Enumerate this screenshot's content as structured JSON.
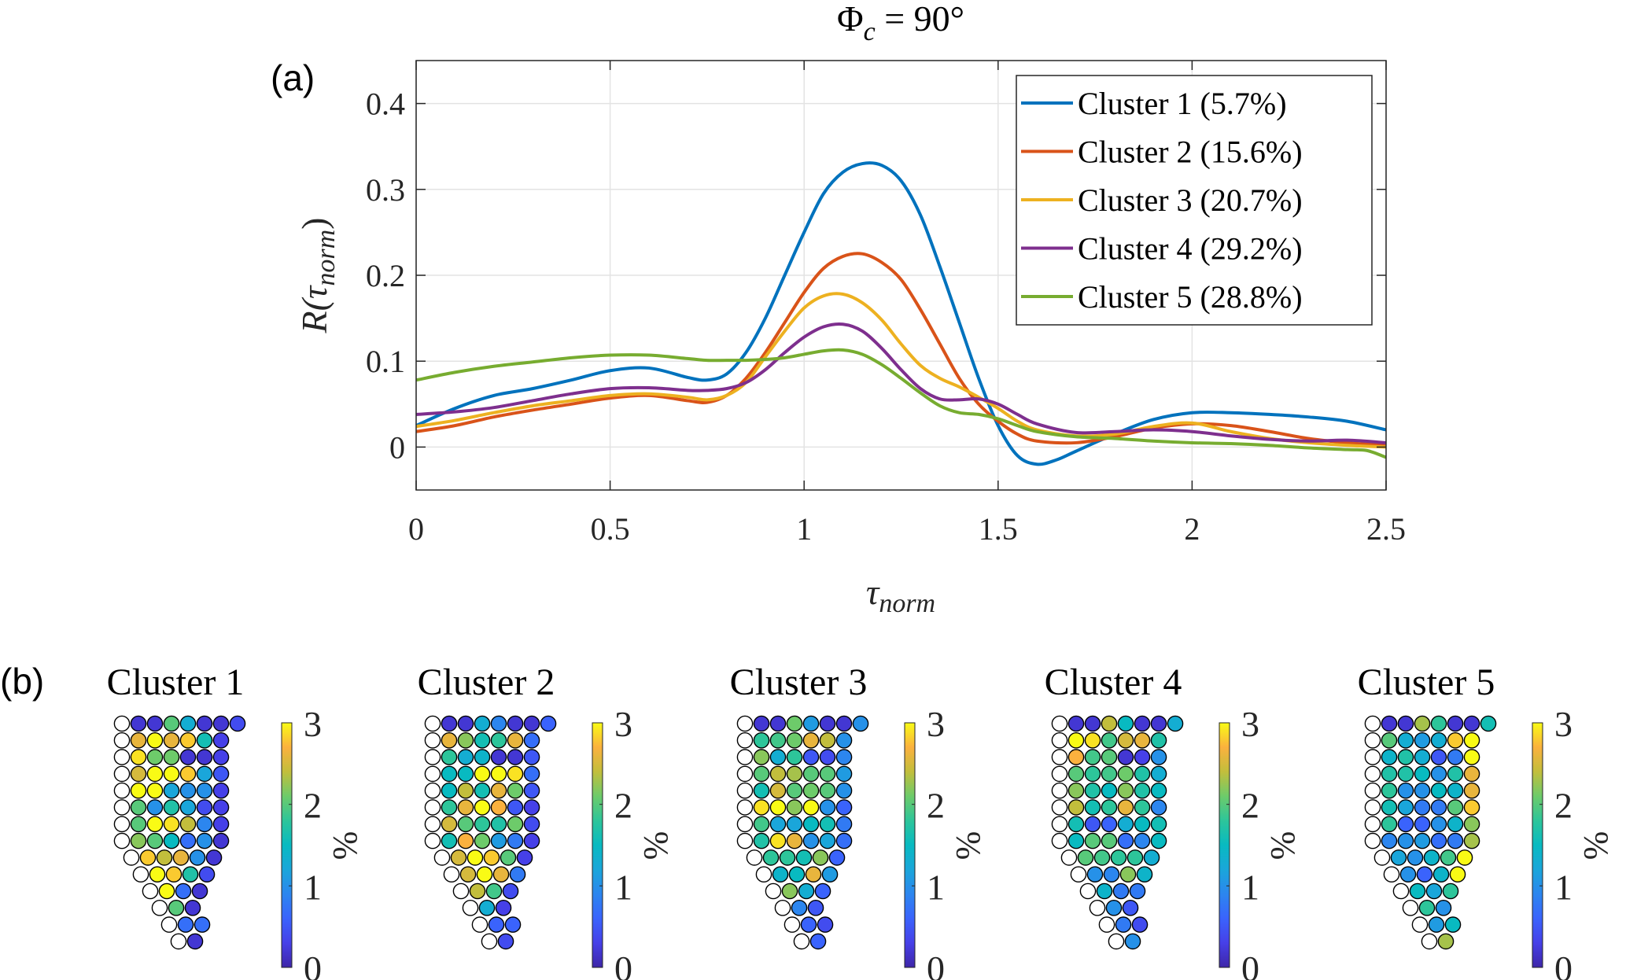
{
  "figure": {
    "title": "Φ",
    "title_sub": "c",
    "title_rest": " = 90°",
    "panel_a_label": "(a)",
    "panel_b_label": "(b)"
  },
  "chart_data": [
    {
      "type": "line",
      "panel": "a",
      "title": "Φc = 90°",
      "xlabel": "τ",
      "xlabel_sub": "norm",
      "ylabel": "R(τ",
      "ylabel_sub": "norm",
      "ylabel_close": ")",
      "xlim": [
        0,
        2.5
      ],
      "ylim": [
        -0.05,
        0.45
      ],
      "xticks": [
        0,
        0.5,
        1,
        1.5,
        2,
        2.5
      ],
      "xtick_labels": [
        "0",
        "0.5",
        "1",
        "1.5",
        "2",
        "2.5"
      ],
      "yticks": [
        0,
        0.1,
        0.2,
        0.3,
        0.4
      ],
      "ytick_labels": [
        "0",
        "0.1",
        "0.2",
        "0.3",
        "0.4"
      ],
      "grid": true,
      "legend_position": "top-right",
      "series": [
        {
          "name": "Cluster 1 (5.7%)",
          "color": "#0072BD",
          "x": [
            0,
            0.1,
            0.2,
            0.3,
            0.4,
            0.5,
            0.6,
            0.7,
            0.75,
            0.8,
            0.85,
            0.9,
            0.95,
            1.0,
            1.05,
            1.1,
            1.15,
            1.2,
            1.25,
            1.3,
            1.35,
            1.4,
            1.45,
            1.5,
            1.55,
            1.6,
            1.65,
            1.7,
            1.8,
            1.9,
            2.0,
            2.1,
            2.2,
            2.3,
            2.4,
            2.5
          ],
          "y": [
            0.025,
            0.045,
            0.06,
            0.068,
            0.078,
            0.089,
            0.092,
            0.081,
            0.078,
            0.085,
            0.11,
            0.15,
            0.2,
            0.25,
            0.295,
            0.32,
            0.33,
            0.328,
            0.31,
            0.27,
            0.21,
            0.145,
            0.08,
            0.025,
            -0.01,
            -0.02,
            -0.015,
            -0.005,
            0.015,
            0.032,
            0.04,
            0.04,
            0.038,
            0.035,
            0.03,
            0.02
          ]
        },
        {
          "name": "Cluster 2 (15.6%)",
          "color": "#D95319",
          "x": [
            0,
            0.1,
            0.2,
            0.3,
            0.4,
            0.5,
            0.6,
            0.7,
            0.75,
            0.8,
            0.85,
            0.9,
            0.95,
            1.0,
            1.05,
            1.1,
            1.15,
            1.2,
            1.25,
            1.3,
            1.35,
            1.4,
            1.45,
            1.5,
            1.55,
            1.6,
            1.7,
            1.8,
            1.9,
            2.0,
            2.1,
            2.2,
            2.3,
            2.4,
            2.5
          ],
          "y": [
            0.018,
            0.025,
            0.035,
            0.043,
            0.05,
            0.057,
            0.06,
            0.054,
            0.052,
            0.06,
            0.08,
            0.11,
            0.145,
            0.18,
            0.208,
            0.222,
            0.225,
            0.215,
            0.195,
            0.16,
            0.12,
            0.08,
            0.05,
            0.03,
            0.015,
            0.007,
            0.005,
            0.012,
            0.022,
            0.027,
            0.025,
            0.018,
            0.01,
            0.005,
            0.002
          ]
        },
        {
          "name": "Cluster 3 (20.7%)",
          "color": "#EDB120",
          "x": [
            0,
            0.1,
            0.2,
            0.3,
            0.4,
            0.5,
            0.6,
            0.7,
            0.75,
            0.8,
            0.85,
            0.9,
            0.95,
            1.0,
            1.05,
            1.1,
            1.15,
            1.2,
            1.25,
            1.3,
            1.35,
            1.4,
            1.45,
            1.5,
            1.55,
            1.6,
            1.7,
            1.8,
            1.9,
            2.0,
            2.1,
            2.2,
            2.3,
            2.4,
            2.5
          ],
          "y": [
            0.024,
            0.031,
            0.04,
            0.048,
            0.054,
            0.06,
            0.062,
            0.058,
            0.055,
            0.06,
            0.075,
            0.105,
            0.135,
            0.162,
            0.176,
            0.178,
            0.168,
            0.148,
            0.12,
            0.095,
            0.08,
            0.07,
            0.058,
            0.045,
            0.03,
            0.02,
            0.013,
            0.015,
            0.024,
            0.028,
            0.018,
            0.01,
            0.005,
            0.002,
            0.0
          ]
        },
        {
          "name": "Cluster 4 (29.2%)",
          "color": "#7E2F8E",
          "x": [
            0,
            0.1,
            0.2,
            0.3,
            0.4,
            0.5,
            0.6,
            0.7,
            0.75,
            0.8,
            0.85,
            0.9,
            0.95,
            1.0,
            1.05,
            1.1,
            1.15,
            1.2,
            1.25,
            1.3,
            1.35,
            1.4,
            1.45,
            1.5,
            1.55,
            1.6,
            1.7,
            1.8,
            1.9,
            2.0,
            2.1,
            2.2,
            2.3,
            2.4,
            2.5
          ],
          "y": [
            0.038,
            0.041,
            0.046,
            0.054,
            0.062,
            0.068,
            0.069,
            0.066,
            0.066,
            0.068,
            0.075,
            0.09,
            0.11,
            0.128,
            0.14,
            0.143,
            0.135,
            0.115,
            0.09,
            0.068,
            0.056,
            0.055,
            0.056,
            0.05,
            0.038,
            0.027,
            0.017,
            0.018,
            0.02,
            0.018,
            0.013,
            0.009,
            0.007,
            0.008,
            0.005
          ]
        },
        {
          "name": "Cluster 5 (28.8%)",
          "color": "#77AC30",
          "x": [
            0,
            0.1,
            0.2,
            0.3,
            0.4,
            0.5,
            0.6,
            0.7,
            0.75,
            0.8,
            0.85,
            0.9,
            0.95,
            1.0,
            1.05,
            1.1,
            1.15,
            1.2,
            1.25,
            1.3,
            1.35,
            1.4,
            1.45,
            1.5,
            1.55,
            1.6,
            1.7,
            1.8,
            1.9,
            2.0,
            2.1,
            2.2,
            2.3,
            2.4,
            2.45,
            2.5
          ],
          "y": [
            0.078,
            0.087,
            0.094,
            0.099,
            0.104,
            0.107,
            0.107,
            0.103,
            0.101,
            0.101,
            0.101,
            0.102,
            0.104,
            0.108,
            0.112,
            0.113,
            0.108,
            0.096,
            0.08,
            0.063,
            0.048,
            0.04,
            0.038,
            0.033,
            0.025,
            0.018,
            0.012,
            0.01,
            0.007,
            0.005,
            0.004,
            0.002,
            -0.001,
            -0.003,
            -0.004,
            -0.012
          ]
        }
      ]
    },
    {
      "type": "heatmap",
      "panel": "b",
      "colorbar_label": "%",
      "colorbar_range": [
        0,
        3
      ],
      "colorbar_ticks": [
        "0",
        "1",
        "2",
        "3"
      ],
      "colormap": "parula",
      "note": "Each row: leading empty (white) sensor, then colored sensors; values in %",
      "row_shape": [
        8,
        7,
        7,
        7,
        7,
        7,
        7,
        7,
        6,
        5,
        4,
        3,
        3,
        2
      ],
      "clusters": [
        {
          "title": "Cluster 1",
          "rows": [
            [
              0.2,
              0.2,
              2.0,
              1.3,
              0.2,
              0.2,
              0.4
            ],
            [
              2.6,
              3.0,
              2.6,
              2.8,
              1.6,
              0.3
            ],
            [
              2.9,
              2.1,
              2.1,
              0.2,
              0.2,
              0.3
            ],
            [
              2.5,
              3.0,
              3.0,
              2.8,
              1.2,
              0.5
            ],
            [
              3.0,
              3.0,
              1.2,
              1.0,
              1.0,
              0.3
            ],
            [
              2.0,
              1.0,
              1.7,
              1.2,
              0.4,
              0.3
            ],
            [
              2.0,
              3.0,
              2.9,
              2.4,
              0.9,
              0.3
            ],
            [
              2.2,
              2.0,
              1.5,
              0.7,
              1.0,
              0.2
            ],
            [
              2.8,
              2.4,
              2.6,
              1.0,
              0.2
            ],
            [
              3.0,
              2.8,
              1.7,
              0.4
            ],
            [
              3.0,
              0.7,
              0.2
            ],
            [
              2.0,
              0.2
            ],
            [
              0.7,
              0.7
            ],
            [
              0.2
            ]
          ]
        },
        {
          "title": "Cluster 2",
          "rows": [
            [
              0.2,
              0.2,
              1.3,
              0.9,
              0.2,
              0.2,
              0.6
            ],
            [
              2.6,
              2.2,
              1.6,
              1.8,
              2.6,
              0.7
            ],
            [
              1.8,
              1.3,
              1.4,
              0.2,
              0.2,
              0.5
            ],
            [
              1.5,
              1.5,
              3.0,
              3.0,
              2.9,
              0.7
            ],
            [
              1.5,
              2.4,
              1.6,
              2.6,
              2.1,
              0.5
            ],
            [
              1.8,
              2.6,
              3.0,
              2.7,
              0.5,
              0.3
            ],
            [
              2.5,
              2.0,
              1.8,
              1.7,
              2.1,
              0.4
            ],
            [
              1.6,
              2.7,
              2.1,
              1.1,
              0.8,
              0.3
            ],
            [
              2.5,
              3.0,
              2.8,
              2.0,
              0.3
            ],
            [
              2.5,
              3.0,
              2.6,
              0.8
            ],
            [
              2.4,
              1.9,
              0.4
            ],
            [
              1.3,
              0.3
            ],
            [
              0.6,
              0.6
            ],
            [
              0.4
            ]
          ]
        },
        {
          "title": "Cluster 3",
          "rows": [
            [
              0.2,
              0.2,
              2.1,
              1.1,
              0.2,
              0.2,
              1.0
            ],
            [
              1.8,
              1.9,
              2.1,
              2.6,
              2.4,
              1.0
            ],
            [
              2.2,
              1.3,
              1.8,
              0.5,
              0.4,
              0.9
            ],
            [
              2.0,
              2.4,
              2.3,
              2.0,
              2.0,
              1.1
            ],
            [
              1.6,
              2.5,
              2.0,
              2.1,
              2.0,
              1.0
            ],
            [
              2.9,
              3.0,
              2.2,
              3.0,
              1.0,
              0.6
            ],
            [
              1.9,
              1.2,
              1.2,
              1.5,
              1.6,
              0.8
            ],
            [
              1.7,
              2.9,
              2.6,
              1.0,
              1.2,
              0.7
            ],
            [
              1.8,
              1.8,
              1.6,
              2.2,
              0.6
            ],
            [
              1.4,
              1.5,
              2.6,
              1.1
            ],
            [
              2.2,
              1.3,
              0.6
            ],
            [
              0.9,
              0.5
            ],
            [
              0.6,
              0.4
            ],
            [
              0.6
            ]
          ]
        },
        {
          "title": "Cluster 4",
          "rows": [
            [
              0.2,
              0.2,
              2.4,
              1.5,
              0.2,
              0.2,
              1.3
            ],
            [
              3.0,
              2.9,
              1.9,
              2.5,
              2.6,
              1.7
            ],
            [
              2.7,
              1.9,
              2.0,
              0.2,
              0.3,
              1.0
            ],
            [
              2.0,
              1.8,
              1.9,
              2.1,
              1.7,
              1.3
            ],
            [
              2.2,
              1.7,
              1.5,
              2.2,
              1.7,
              1.5
            ],
            [
              2.4,
              1.6,
              1.8,
              2.6,
              1.8,
              0.9
            ],
            [
              1.6,
              0.5,
              0.6,
              1.3,
              1.5,
              1.6
            ],
            [
              1.5,
              2.0,
              2.0,
              0.7,
              0.9,
              1.5
            ],
            [
              2.0,
              1.9,
              1.8,
              1.8,
              1.3
            ],
            [
              1.0,
              0.9,
              2.2,
              1.4
            ],
            [
              1.4,
              0.8,
              0.8
            ],
            [
              1.0,
              0.5
            ],
            [
              0.8,
              0.4
            ],
            [
              1.0
            ]
          ]
        },
        {
          "title": "Cluster 5",
          "rows": [
            [
              0.2,
              0.2,
              2.3,
              1.8,
              0.2,
              0.2,
              1.6
            ],
            [
              2.0,
              1.3,
              1.1,
              1.3,
              2.8,
              3.0
            ],
            [
              1.4,
              1.7,
              1.3,
              0.5,
              0.8,
              3.0
            ],
            [
              1.7,
              1.7,
              1.5,
              1.0,
              1.7,
              2.6
            ],
            [
              1.8,
              1.0,
              1.0,
              1.5,
              1.4,
              2.6
            ],
            [
              1.6,
              1.2,
              0.8,
              0.8,
              2.0,
              2.8
            ],
            [
              1.8,
              0.6,
              0.6,
              1.0,
              1.4,
              2.2
            ],
            [
              0.9,
              1.0,
              1.1,
              0.7,
              0.8,
              2.3
            ],
            [
              1.2,
              1.0,
              1.4,
              1.9,
              3.0
            ],
            [
              1.0,
              0.6,
              1.4,
              3.0
            ],
            [
              1.5,
              1.2,
              1.8
            ],
            [
              1.8,
              1.0
            ],
            [
              1.1,
              1.5
            ],
            [
              2.3
            ]
          ]
        }
      ]
    }
  ]
}
